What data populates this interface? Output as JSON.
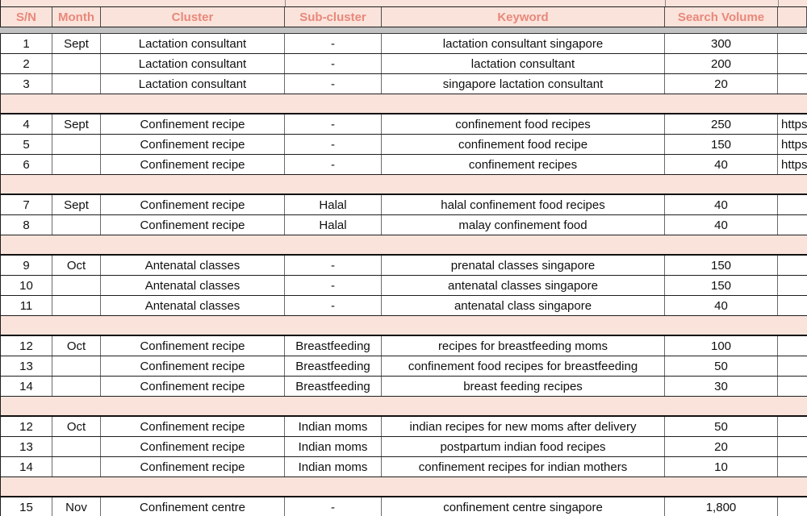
{
  "colors": {
    "band_pink": "#FAE3DB",
    "header_text": "#E8887A",
    "freeze_divider_gray": "#C2C2C2",
    "border_dark": "#1E1E1E",
    "border_gray": "#6B6B6B"
  },
  "table": {
    "columns": [
      {
        "key": "sn",
        "label": "S/N"
      },
      {
        "key": "month",
        "label": "Month"
      },
      {
        "key": "cluster",
        "label": "Cluster"
      },
      {
        "key": "subcluster",
        "label": "Sub-cluster"
      },
      {
        "key": "keyword",
        "label": "Keyword"
      },
      {
        "key": "volume",
        "label": "Search Volume"
      },
      {
        "key": "url",
        "label": ""
      }
    ],
    "rows": [
      {
        "type": "data",
        "sn": "1",
        "month": "Sept",
        "cluster": "Lactation consultant",
        "subcluster": "-",
        "keyword": "lactation consultant singapore",
        "volume": "300",
        "url": ""
      },
      {
        "type": "data",
        "sn": "2",
        "month": "",
        "cluster": "Lactation consultant",
        "subcluster": "-",
        "keyword": "lactation consultant",
        "volume": "200",
        "url": ""
      },
      {
        "type": "data",
        "sn": "3",
        "month": "",
        "cluster": "Lactation consultant",
        "subcluster": "-",
        "keyword": "singapore lactation consultant",
        "volume": "20",
        "url": ""
      },
      {
        "type": "spacer"
      },
      {
        "type": "data",
        "sn": "4",
        "month": "Sept",
        "cluster": "Confinement recipe",
        "subcluster": "-",
        "keyword": "confinement food recipes",
        "volume": "250",
        "url": "https"
      },
      {
        "type": "data",
        "sn": "5",
        "month": "",
        "cluster": "Confinement recipe",
        "subcluster": "-",
        "keyword": "confinement food recipe",
        "volume": "150",
        "url": "https"
      },
      {
        "type": "data",
        "sn": "6",
        "month": "",
        "cluster": "Confinement recipe",
        "subcluster": "-",
        "keyword": "confinement recipes",
        "volume": "40",
        "url": "https"
      },
      {
        "type": "spacer"
      },
      {
        "type": "data",
        "sn": "7",
        "month": "Sept",
        "cluster": "Confinement recipe",
        "subcluster": "Halal",
        "keyword": "halal confinement food recipes",
        "volume": "40",
        "url": ""
      },
      {
        "type": "data",
        "sn": "8",
        "month": "",
        "cluster": "Confinement recipe",
        "subcluster": "Halal",
        "keyword": "malay confinement food",
        "volume": "40",
        "url": ""
      },
      {
        "type": "spacer"
      },
      {
        "type": "data",
        "sn": "9",
        "month": "Oct",
        "cluster": "Antenatal classes",
        "subcluster": "-",
        "keyword": "prenatal classes singapore",
        "volume": "150",
        "url": ""
      },
      {
        "type": "data",
        "sn": "10",
        "month": "",
        "cluster": "Antenatal classes",
        "subcluster": "-",
        "keyword": "antenatal classes singapore",
        "volume": "150",
        "url": ""
      },
      {
        "type": "data",
        "sn": "11",
        "month": "",
        "cluster": "Antenatal classes",
        "subcluster": "-",
        "keyword": "antenatal class singapore",
        "volume": "40",
        "url": ""
      },
      {
        "type": "spacer"
      },
      {
        "type": "data",
        "sn": "12",
        "month": "Oct",
        "cluster": "Confinement recipe",
        "subcluster": "Breastfeeding",
        "keyword": "recipes for breastfeeding moms",
        "volume": "100",
        "url": ""
      },
      {
        "type": "data",
        "sn": "13",
        "month": "",
        "cluster": "Confinement recipe",
        "subcluster": "Breastfeeding",
        "keyword": "confinement food recipes for breastfeeding",
        "volume": "50",
        "url": ""
      },
      {
        "type": "data",
        "sn": "14",
        "month": "",
        "cluster": "Confinement recipe",
        "subcluster": "Breastfeeding",
        "keyword": "breast feeding recipes",
        "volume": "30",
        "url": ""
      },
      {
        "type": "spacer"
      },
      {
        "type": "data",
        "sn": "12",
        "month": "Oct",
        "cluster": "Confinement recipe",
        "subcluster": "Indian moms",
        "keyword": "indian recipes for new moms after delivery",
        "volume": "50",
        "url": ""
      },
      {
        "type": "data",
        "sn": "13",
        "month": "",
        "cluster": "Confinement recipe",
        "subcluster": "Indian moms",
        "keyword": "postpartum indian food recipes",
        "volume": "20",
        "url": ""
      },
      {
        "type": "data",
        "sn": "14",
        "month": "",
        "cluster": "Confinement recipe",
        "subcluster": "Indian moms",
        "keyword": "confinement recipes for indian mothers",
        "volume": "10",
        "url": ""
      },
      {
        "type": "spacer"
      },
      {
        "type": "data",
        "sn": "15",
        "month": "Nov",
        "cluster": "Confinement centre",
        "subcluster": "-",
        "keyword": "confinement centre singapore",
        "volume": "1,800",
        "url": ""
      }
    ]
  }
}
